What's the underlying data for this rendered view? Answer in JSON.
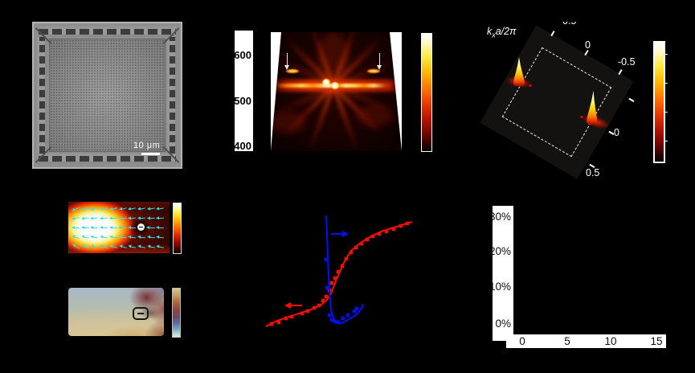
{
  "figure": {
    "background": "#000000",
    "panel_a": {
      "scale_bar_label": "10 μm"
    },
    "panel_b": {
      "wavelength_ticks": [
        "600",
        "500",
        "400"
      ]
    },
    "panel_c": {
      "axis_label": {
        "k": "k",
        "sub": "x",
        "rest": "a/2π"
      },
      "ticks": {
        "top_clipped": "0.5",
        "top_zero": "0",
        "top_neg": "-0.5",
        "right_zero": "0",
        "bottom_pos": "0.5"
      }
    },
    "panel_d": {
      "defect_minus_top": "−",
      "defect_minus_bottom": "−",
      "quiver": {
        "cols": 10,
        "rows": 5,
        "color": "#3adede",
        "target": [
          -35,
          32
        ]
      }
    },
    "panel_f": {
      "y_tick_labels": [
        "30%",
        "20%",
        "10%",
        "0%"
      ],
      "x_tick_labels": [
        "0",
        "5",
        "10",
        "15"
      ]
    }
  },
  "colors": {
    "red_series": "#ee1100",
    "blue_series": "#0011ee",
    "quiver_cyan": "#3adede",
    "tick_text_white": "#ffffff",
    "axis_strip_white": "#ffffff"
  },
  "chart_data": [
    {
      "id": "panel-b",
      "type": "heatmap",
      "colormap": "hot",
      "y_tick_labels": [
        "600",
        "500",
        "400"
      ],
      "annotations": [
        "white-down-arrow",
        "white-down-arrow"
      ]
    },
    {
      "id": "panel-c",
      "type": "heatmap",
      "colormap": "hot",
      "axis_label": "kxa/2π",
      "tick_labels": [
        "0.5",
        "0",
        "-0.5",
        "0",
        "0.5"
      ]
    },
    {
      "id": "panel-e",
      "type": "line",
      "axes_visible": false,
      "coordinate_units": "panel-local-px",
      "series": [
        {
          "name": "red-input-output-curve",
          "color": "#ee1100",
          "marker": "square",
          "line": [
            [
              36,
              148
            ],
            [
              50,
              141
            ],
            [
              65,
              136
            ],
            [
              80,
              131
            ],
            [
              95,
              126
            ],
            [
              105,
              121
            ],
            [
              112,
              115
            ],
            [
              117,
              107
            ],
            [
              121,
              97
            ],
            [
              125,
              87
            ],
            [
              129,
              78
            ],
            [
              133,
              69
            ],
            [
              138,
              60
            ],
            [
              143,
              53
            ],
            [
              150,
              47
            ],
            [
              157,
              42
            ],
            [
              165,
              37
            ],
            [
              173,
              33
            ],
            [
              182,
              29
            ],
            [
              192,
              26
            ],
            [
              202,
              23
            ],
            [
              211,
              20
            ],
            [
              218,
              18
            ]
          ],
          "markers": [
            [
              43,
              145
            ],
            [
              52,
              143
            ],
            [
              61,
              138
            ],
            [
              68,
              136
            ],
            [
              81,
              132
            ],
            [
              88,
              129
            ],
            [
              96,
              125
            ],
            [
              102,
              122
            ],
            [
              107,
              116
            ],
            [
              111,
              111
            ],
            [
              115,
              103
            ],
            [
              118,
              94
            ],
            [
              122,
              88
            ],
            [
              126,
              80
            ],
            [
              131,
              73
            ],
            [
              136,
              64
            ],
            [
              142,
              56
            ],
            [
              148,
              50
            ],
            [
              155,
              45
            ],
            [
              162,
              40
            ],
            [
              169,
              36
            ],
            [
              177,
              33
            ],
            [
              186,
              30
            ],
            [
              195,
              27
            ],
            [
              204,
              23
            ],
            [
              212,
              20
            ]
          ]
        },
        {
          "name": "blue-linewidth-curve",
          "color": "#0011ee",
          "marker": "square",
          "line": [
            [
              111,
              10
            ],
            [
              112,
              32
            ],
            [
              113,
              62
            ],
            [
              114,
              87
            ],
            [
              115,
              102
            ],
            [
              116,
              117
            ],
            [
              117,
              127
            ],
            [
              119,
              135
            ],
            [
              122,
              141
            ],
            [
              126,
              144
            ],
            [
              131,
              144
            ],
            [
              136,
              141
            ],
            [
              141,
              138
            ],
            [
              146,
              135
            ],
            [
              150,
              132
            ],
            [
              153,
              128
            ],
            [
              156,
              124
            ],
            [
              157,
              120
            ]
          ],
          "markers": [
            [
              111,
              65
            ],
            [
              112,
              100
            ],
            [
              115,
              134
            ],
            [
              118,
              140
            ],
            [
              122,
              142
            ],
            [
              126,
              143
            ],
            [
              132,
              138
            ],
            [
              138,
              134
            ],
            [
              146,
              129
            ],
            [
              149,
              126
            ]
          ]
        }
      ],
      "annotations": [
        {
          "type": "arrow",
          "direction": "right",
          "color": "#0011ee",
          "from": [
            117,
            33
          ],
          "to": [
            139,
            33
          ]
        },
        {
          "type": "arrow",
          "direction": "left",
          "color": "#ee1100",
          "from": [
            81,
            122
          ],
          "to": [
            59,
            122
          ]
        }
      ]
    },
    {
      "id": "panel-f",
      "type": "scatter",
      "x_tick_labels": [
        "0",
        "5",
        "10",
        "15"
      ],
      "y_tick_labels": [
        "30%",
        "20%",
        "10%",
        "0%"
      ],
      "series": []
    }
  ]
}
